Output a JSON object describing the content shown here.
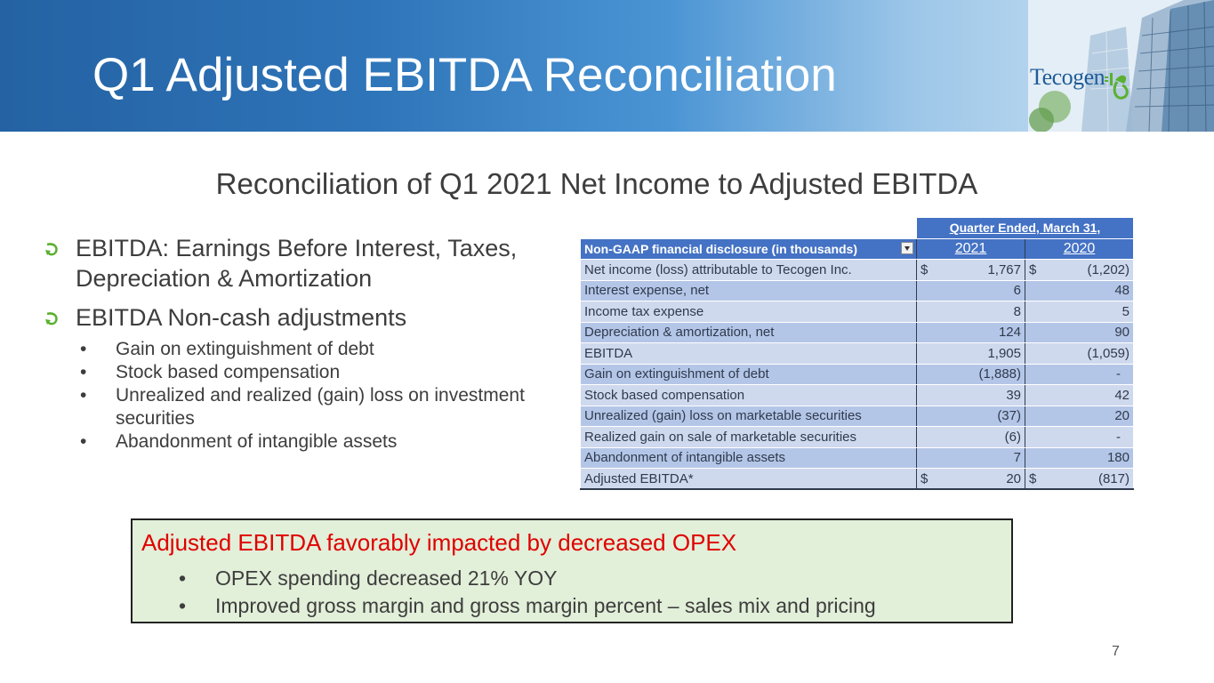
{
  "header": {
    "title": "Q1 Adjusted EBITDA Reconciliation",
    "logo_text": "Tecogen"
  },
  "subtitle": "Reconciliation of Q1 2021 Net Income to Adjusted EBITDA",
  "bullets": [
    {
      "text": "EBITDA: Earnings Before Interest, Taxes, Depreciation & Amortization",
      "icon": "green-arrow-bullet-icon"
    },
    {
      "text": "EBITDA Non-cash adjustments",
      "icon": "green-arrow-bullet-icon",
      "sub": [
        "Gain on extinguishment of debt",
        "Stock based compensation",
        "Unrealized and realized (gain) loss on investment securities",
        "Abandonment of intangible assets"
      ]
    }
  ],
  "bullet_char": "•",
  "table": {
    "period_header": "Quarter Ended, March 31,",
    "label_header": "Non-GAAP financial disclosure (in thousands)",
    "years": [
      "2021",
      "2020"
    ],
    "currency": "$",
    "rows": [
      {
        "label": "Net income (loss) attributable to Tecogen Inc.",
        "v2021": "1,767",
        "v2020": "(1,202)",
        "currency": true
      },
      {
        "label": "Interest expense, net",
        "v2021": "6",
        "v2020": "48"
      },
      {
        "label": "Income tax expense",
        "v2021": "8",
        "v2020": "5"
      },
      {
        "label": "Depreciation & amortization, net",
        "v2021": "124",
        "v2020": "90"
      },
      {
        "label": "EBITDA",
        "v2021": "1,905",
        "v2020": "(1,059)"
      },
      {
        "label": "Gain on extinguishment of debt",
        "v2021": "(1,888)",
        "v2020": "-"
      },
      {
        "label": "Stock based compensation",
        "v2021": "39",
        "v2020": "42"
      },
      {
        "label": "Unrealized (gain) loss on marketable securities",
        "v2021": "(37)",
        "v2020": "20"
      },
      {
        "label": "Realized gain on sale of marketable securities",
        "v2021": "(6)",
        "v2020": "-"
      },
      {
        "label": "Abandonment of intangible assets",
        "v2021": "7",
        "v2020": "180"
      },
      {
        "label": "Adjusted EBITDA*",
        "v2021": "20",
        "v2020": "(817)",
        "currency": true
      }
    ]
  },
  "callout": {
    "title": "Adjusted EBITDA favorably impacted by decreased OPEX",
    "items": [
      "OPEX spending decreased 21% YOY",
      "Improved gross margin and gross margin percent – sales mix and pricing"
    ],
    "title_color": "#e00000",
    "background": "#e2efd9"
  },
  "page_number": "7",
  "colors": {
    "header_blue": "#2462a3",
    "table_header": "#4472c4",
    "table_row_light": "#cfd9ee",
    "table_row_dark": "#b4c6e7",
    "bullet_green": "#5bb030"
  }
}
